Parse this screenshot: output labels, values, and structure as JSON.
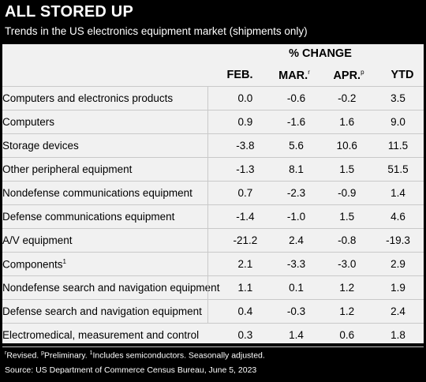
{
  "title": "ALL STORED UP",
  "subtitle": "Trends in the US electronics equipment market (shipments only)",
  "table": {
    "group_header": "% CHANGE",
    "columns": [
      {
        "label": "FEB.",
        "mark": ""
      },
      {
        "label": "MAR.",
        "mark": "r"
      },
      {
        "label": "APR.",
        "mark": "p"
      },
      {
        "label": "YTD",
        "mark": ""
      }
    ],
    "rows": [
      {
        "label": "Computers and electronics products",
        "mark": "",
        "values": [
          "0.0",
          "-0.6",
          "-0.2",
          "3.5"
        ]
      },
      {
        "label": "Computers",
        "mark": "",
        "values": [
          "0.9",
          "-1.6",
          "1.6",
          "9.0"
        ]
      },
      {
        "label": "Storage devices",
        "mark": "",
        "values": [
          "-3.8",
          "5.6",
          "10.6",
          "11.5"
        ]
      },
      {
        "label": "Other peripheral equipment",
        "mark": "",
        "values": [
          "-1.3",
          "8.1",
          "1.5",
          "51.5"
        ]
      },
      {
        "label": "Nondefense communications equipment",
        "mark": "",
        "values": [
          "0.7",
          "-2.3",
          "-0.9",
          "1.4"
        ]
      },
      {
        "label": "Defense communications equipment",
        "mark": "",
        "values": [
          "-1.4",
          "-1.0",
          "1.5",
          "4.6"
        ]
      },
      {
        "label": "A/V equipment",
        "mark": "",
        "values": [
          "-21.2",
          "2.4",
          "-0.8",
          "-19.3"
        ]
      },
      {
        "label": "Components",
        "mark": "1",
        "values": [
          "2.1",
          "-3.3",
          "-3.0",
          "2.9"
        ]
      },
      {
        "label": "Nondefense search and navigation equipment",
        "mark": "",
        "values": [
          "1.1",
          "0.1",
          "1.2",
          "1.9"
        ]
      },
      {
        "label": "Defense search and navigation equipment",
        "mark": "",
        "values": [
          "0.4",
          "-0.3",
          "1.2",
          "2.4"
        ]
      },
      {
        "label": "Electromedical, measurement and control",
        "mark": "",
        "values": [
          "0.3",
          "1.4",
          "0.6",
          "1.8"
        ]
      }
    ]
  },
  "footnote": {
    "r_mark": "r",
    "r_text": "Revised. ",
    "p_mark": "p",
    "p_text": "Preliminary. ",
    "one_mark": "1",
    "one_text": "Includes semiconductors. Seasonally adjusted."
  },
  "source": "Source: US Department of Commerce Census Bureau, June 5, 2023"
}
